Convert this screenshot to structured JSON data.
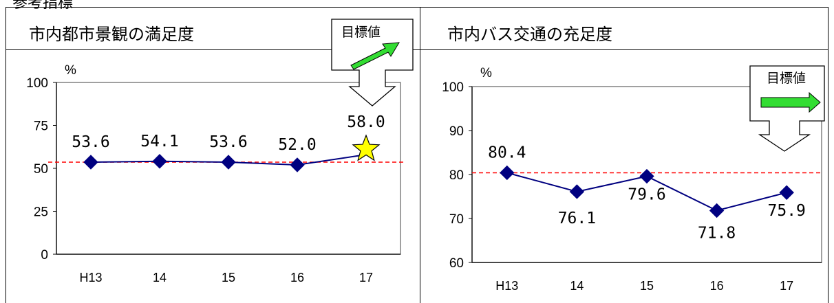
{
  "top_label": "参考指標",
  "colors": {
    "series": "#000080",
    "target_line": "#ff0000",
    "arrow_fill": "#33dd33",
    "star_fill": "#ffff00"
  },
  "chart_data": [
    {
      "type": "line",
      "title": "市内都市景観の満足度",
      "unit": "%",
      "categories": [
        "H13",
        "14",
        "15",
        "16",
        "17"
      ],
      "values": [
        53.6,
        54.1,
        53.6,
        52.0,
        58.0
      ],
      "value_labels": [
        "53.6",
        "54.1",
        "53.6",
        "52.0",
        "58.0"
      ],
      "yticks": [
        "100",
        "75",
        "50",
        "25",
        "0"
      ],
      "ylim": [
        0,
        100
      ],
      "reference_line": 53.6,
      "target_label": "目標値",
      "target_direction": "up",
      "last_point_marker": "star",
      "grid": false
    },
    {
      "type": "line",
      "title": "市内バス交通の充足度",
      "unit": "%",
      "categories": [
        "H13",
        "14",
        "15",
        "16",
        "17"
      ],
      "values": [
        80.4,
        76.1,
        79.6,
        71.8,
        75.9
      ],
      "value_labels": [
        "80.4",
        "76.1",
        "79.6",
        "71.8",
        "75.9"
      ],
      "yticks": [
        "100",
        "90",
        "80",
        "70",
        "60"
      ],
      "ylim": [
        60,
        100
      ],
      "reference_line": 80.4,
      "target_label": "目標値",
      "target_direction": "flat",
      "grid": false
    }
  ]
}
